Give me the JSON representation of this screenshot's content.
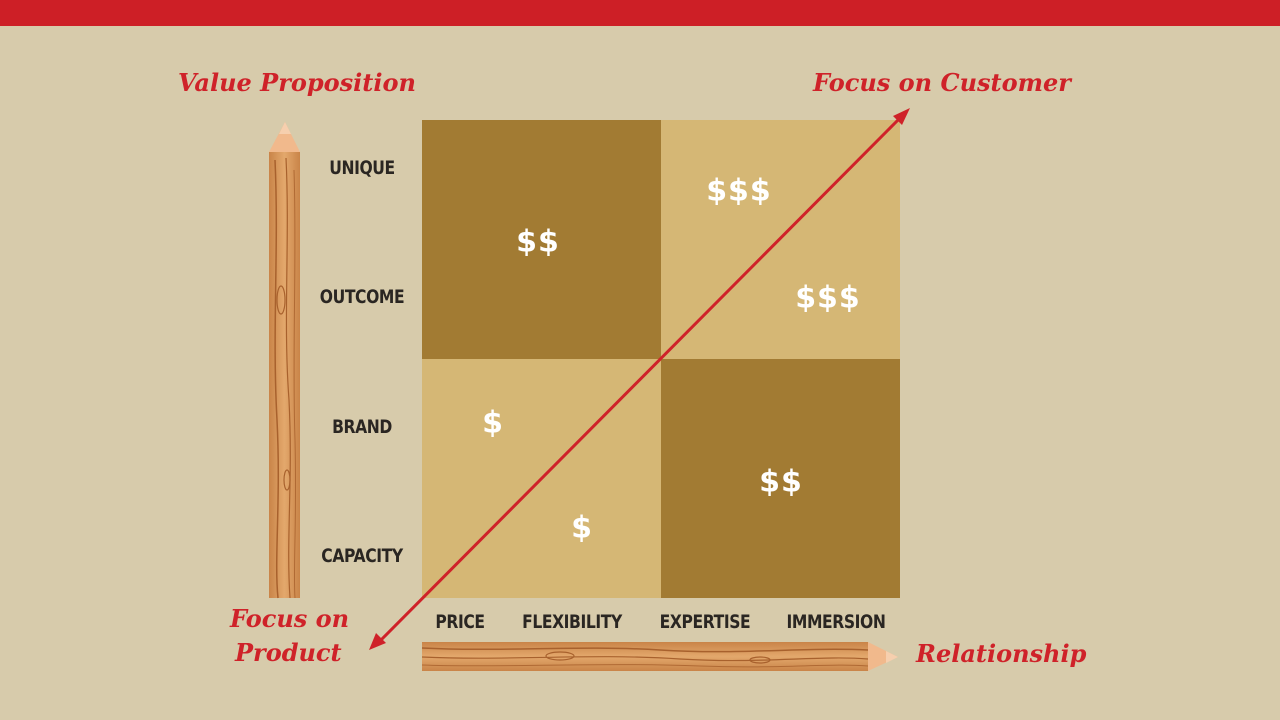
{
  "header": {
    "bar_color": "#cd1f26"
  },
  "labels": {
    "y_title": "Value Proposition",
    "x_title": "Relationship",
    "top_right": "Focus on Customer",
    "bottom_left_line1": "Focus on",
    "bottom_left_line2": "Product"
  },
  "y_axis": {
    "levels": [
      "UNIQUE",
      "OUTCOME",
      "BRAND",
      "CAPACITY"
    ]
  },
  "x_axis": {
    "levels": [
      "PRICE",
      "FLEXIBILITY",
      "EXPERTISE",
      "IMMERSION"
    ]
  },
  "quadrants": {
    "top_left": {
      "color": "#a27b33",
      "value": "$$"
    },
    "top_right": {
      "color": "#d5b775",
      "values": [
        "$$$",
        "$$$"
      ]
    },
    "bottom_left": {
      "color": "#d5b775",
      "values": [
        "$",
        "$"
      ]
    },
    "bottom_right": {
      "color": "#a27b33",
      "value": "$$"
    }
  },
  "colors": {
    "accent": "#cf2229",
    "background": "#d7cbab",
    "wood": "#d99a5f"
  },
  "icons": {
    "y_axis": "pencil-icon",
    "x_axis": "pencil-icon",
    "diagonal": "double-arrow-icon"
  }
}
